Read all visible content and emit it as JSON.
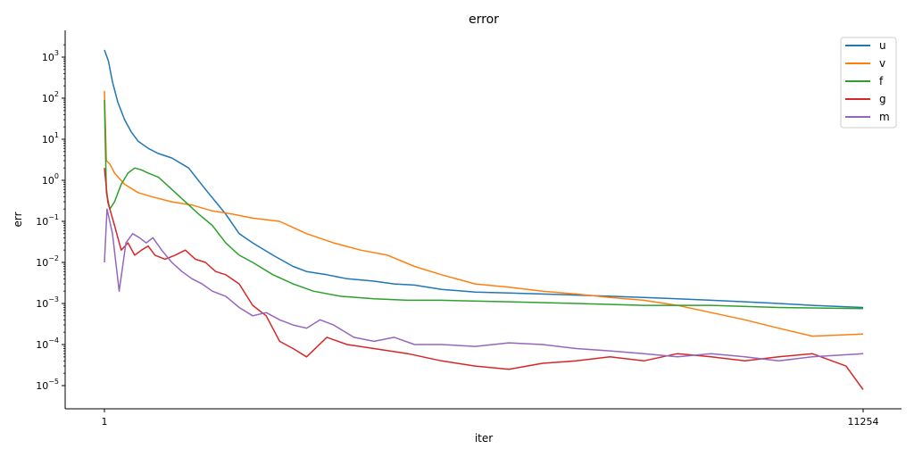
{
  "chart_data": {
    "type": "line",
    "title": "error",
    "xlabel": "iter",
    "ylabel": "err",
    "xlim": [
      1,
      11254
    ],
    "x_ticks": [
      1,
      11254
    ],
    "y_scale": "log",
    "ylim": [
      3e-06,
      3000
    ],
    "y_ticks": [
      {
        "value": 1000,
        "base": "10",
        "exp": "3"
      },
      {
        "value": 100,
        "base": "10",
        "exp": "2"
      },
      {
        "value": 10,
        "base": "10",
        "exp": "1"
      },
      {
        "value": 1,
        "base": "10",
        "exp": "0"
      },
      {
        "value": 0.1,
        "base": "10",
        "exp": "−1"
      },
      {
        "value": 0.01,
        "base": "10",
        "exp": "−2"
      },
      {
        "value": 0.001,
        "base": "10",
        "exp": "−3"
      },
      {
        "value": 0.0001,
        "base": "10",
        "exp": "−4"
      },
      {
        "value": 1e-05,
        "base": "10",
        "exp": "−5"
      }
    ],
    "grid": false,
    "legend_position": "top-right",
    "series": [
      {
        "name": "u",
        "color": "#1f77b4",
        "x": [
          1,
          60,
          120,
          200,
          300,
          400,
          500,
          650,
          800,
          1000,
          1250,
          1500,
          1800,
          2000,
          2200,
          2500,
          2800,
          3000,
          3300,
          3600,
          4000,
          4300,
          4600,
          5000,
          5500,
          6000,
          6500,
          7000,
          7500,
          8000,
          8500,
          9000,
          9500,
          10000,
          10500,
          11254
        ],
        "y": [
          1500,
          800,
          250,
          80,
          30,
          15,
          9,
          6,
          4.5,
          3.5,
          2,
          0.6,
          0.15,
          0.05,
          0.03,
          0.015,
          0.008,
          0.006,
          0.005,
          0.004,
          0.0035,
          0.003,
          0.0028,
          0.0022,
          0.0019,
          0.0018,
          0.0017,
          0.0016,
          0.0015,
          0.0014,
          0.0013,
          0.0012,
          0.0011,
          0.001,
          0.0009,
          0.0008
        ]
      },
      {
        "name": "v",
        "color": "#ff7f0e",
        "x": [
          1,
          30,
          80,
          150,
          300,
          500,
          700,
          1000,
          1300,
          1600,
          1900,
          2200,
          2600,
          3000,
          3400,
          3800,
          4200,
          4600,
          5000,
          5500,
          6000,
          6500,
          7000,
          7500,
          8000,
          8500,
          9000,
          9500,
          10000,
          10500,
          11254
        ],
        "y": [
          150,
          3,
          2.5,
          1.5,
          0.8,
          0.5,
          0.4,
          0.3,
          0.25,
          0.18,
          0.15,
          0.12,
          0.1,
          0.05,
          0.03,
          0.02,
          0.015,
          0.008,
          0.005,
          0.003,
          0.0025,
          0.002,
          0.0017,
          0.0014,
          0.0012,
          0.0009,
          0.0006,
          0.0004,
          0.00025,
          0.00016,
          0.00018
        ]
      },
      {
        "name": "f",
        "color": "#2ca02c",
        "x": [
          1,
          30,
          80,
          150,
          250,
          350,
          450,
          550,
          650,
          800,
          1000,
          1200,
          1400,
          1600,
          1800,
          2000,
          2200,
          2500,
          2800,
          3100,
          3500,
          4000,
          4500,
          5000,
          6000,
          7000,
          8000,
          9000,
          10000,
          11254
        ],
        "y": [
          90,
          0.5,
          0.2,
          0.3,
          0.8,
          1.5,
          2.0,
          1.8,
          1.5,
          1.2,
          0.6,
          0.3,
          0.15,
          0.08,
          0.03,
          0.015,
          0.01,
          0.005,
          0.003,
          0.002,
          0.0015,
          0.0013,
          0.0012,
          0.0012,
          0.0011,
          0.001,
          0.0009,
          0.0009,
          0.0008,
          0.00075
        ]
      },
      {
        "name": "g",
        "color": "#d62728",
        "x": [
          1,
          50,
          150,
          250,
          350,
          450,
          550,
          650,
          750,
          900,
          1050,
          1200,
          1350,
          1500,
          1650,
          1800,
          2000,
          2200,
          2400,
          2600,
          2800,
          3000,
          3300,
          3600,
          4000,
          4500,
          5000,
          5500,
          6000,
          6500,
          7000,
          7500,
          8000,
          8500,
          9000,
          9500,
          10000,
          10500,
          11000,
          11254
        ],
        "y": [
          2,
          0.3,
          0.08,
          0.02,
          0.03,
          0.015,
          0.02,
          0.025,
          0.015,
          0.012,
          0.015,
          0.02,
          0.012,
          0.01,
          0.006,
          0.005,
          0.003,
          0.0009,
          0.0005,
          0.00012,
          8e-05,
          5e-05,
          0.00015,
          0.0001,
          8e-05,
          6e-05,
          4e-05,
          3e-05,
          2.5e-05,
          3.5e-05,
          4e-05,
          5e-05,
          4e-05,
          6e-05,
          5e-05,
          4e-05,
          5e-05,
          6e-05,
          3e-05,
          8e-06
        ]
      },
      {
        "name": "m",
        "color": "#9467bd",
        "x": [
          1,
          40,
          120,
          220,
          320,
          420,
          520,
          620,
          720,
          850,
          1000,
          1150,
          1300,
          1450,
          1600,
          1800,
          2000,
          2200,
          2400,
          2600,
          2800,
          3000,
          3200,
          3400,
          3700,
          4000,
          4300,
          4600,
          5000,
          5500,
          6000,
          6500,
          7000,
          7500,
          8000,
          8500,
          9000,
          9500,
          10000,
          10500,
          11254
        ],
        "y": [
          0.01,
          0.2,
          0.05,
          0.002,
          0.03,
          0.05,
          0.04,
          0.03,
          0.04,
          0.02,
          0.01,
          0.006,
          0.004,
          0.003,
          0.002,
          0.0015,
          0.0008,
          0.0005,
          0.0006,
          0.0004,
          0.0003,
          0.00025,
          0.0004,
          0.0003,
          0.00015,
          0.00012,
          0.00015,
          0.0001,
          0.0001,
          9e-05,
          0.00011,
          0.0001,
          8e-05,
          7e-05,
          6e-05,
          5e-05,
          6e-05,
          5e-05,
          4e-05,
          5e-05,
          6e-05
        ]
      }
    ]
  }
}
